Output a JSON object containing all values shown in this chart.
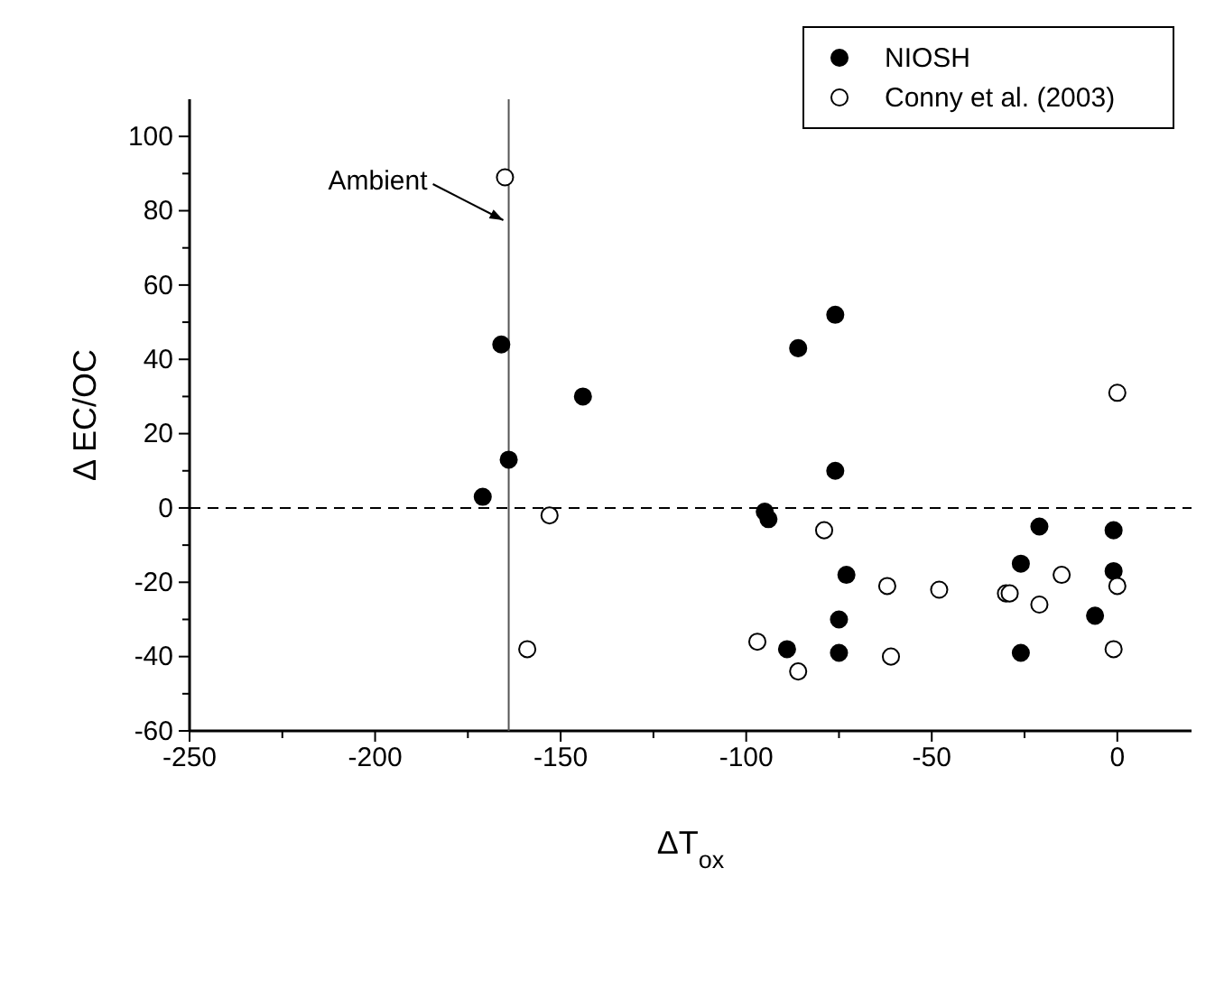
{
  "chart_data": {
    "type": "scatter",
    "xlabel": "ΔT$_{ox}$",
    "ylabel": "Δ EC/OC",
    "xlim": [
      -250,
      20
    ],
    "ylim": [
      -60,
      110
    ],
    "xticks": [
      -250,
      {
        "value": -225,
        "label": null
      },
      -200,
      {
        "value": -175,
        "label": null
      },
      -150,
      {
        "value": -125,
        "label": null
      },
      -100,
      {
        "value": -75,
        "label": null
      },
      -50,
      {
        "value": -25,
        "label": null
      },
      0
    ],
    "yticks": [
      -60,
      {
        "value": -50,
        "label": null
      },
      -40,
      {
        "value": -30,
        "label": null
      },
      -20,
      {
        "value": -10,
        "label": null
      },
      0,
      {
        "value": 10,
        "label": null
      },
      20,
      {
        "value": 30,
        "label": null
      },
      40,
      {
        "value": 50,
        "label": null
      },
      60,
      {
        "value": 70,
        "label": null
      },
      80,
      {
        "value": 90,
        "label": null
      },
      100
    ],
    "legend": "top right",
    "marker": "circle",
    "grid": false,
    "ref_lines": [
      {
        "axis": "x",
        "value": -164,
        "label": "Ambient",
        "color": "#555555",
        "line_style": "solid"
      },
      {
        "axis": "y",
        "value": 0,
        "color": "#000000",
        "line_style": "dashed"
      }
    ],
    "series": [
      {
        "name": "NIOSH",
        "color": "#000000",
        "x": [
          -171,
          -166,
          -164,
          -144,
          -95,
          -94,
          -89,
          -86,
          -76,
          -76,
          -75,
          -75,
          -73,
          -26,
          -26,
          -21,
          -6,
          -1,
          -1
        ],
        "values": [
          3,
          44,
          13,
          30,
          -1,
          -3,
          -38,
          43,
          52,
          10,
          -30,
          -39,
          -18,
          -15,
          -39,
          -5,
          -29,
          -6,
          -17
        ]
      },
      {
        "name": "Conny et al. (2003)",
        "color": "#ffffff",
        "x": [
          -165,
          -153,
          -159,
          -97,
          -86,
          -79,
          -62,
          -61,
          -48,
          -30,
          -29,
          -21,
          -15,
          0,
          0,
          -1
        ],
        "values": [
          89,
          -2,
          -38,
          -36,
          -44,
          -6,
          -21,
          -40,
          -22,
          -23,
          -23,
          -26,
          -18,
          31,
          -21,
          -38
        ]
      }
    ]
  }
}
